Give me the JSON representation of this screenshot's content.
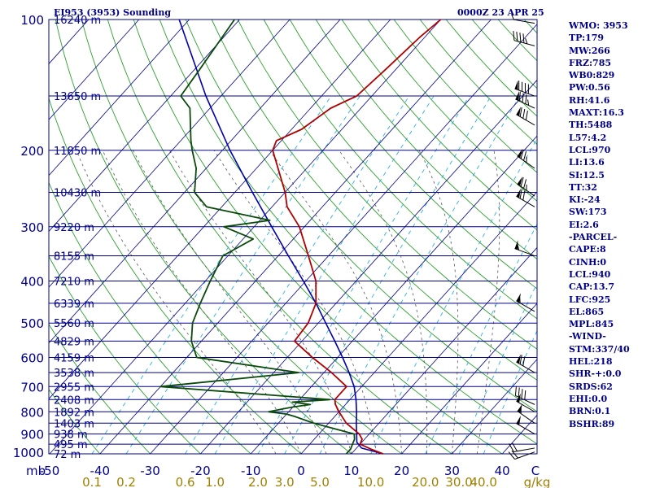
{
  "header": {
    "station_title": "EI953 (3953) Sounding",
    "valid_time": "0000Z 23 APR 25"
  },
  "indices": [
    "WMO: 3953",
    "TP:179",
    "MW:266",
    "FRZ:785",
    "WB0:829",
    "PW:0.56",
    "RH:41.6",
    "MAXT:16.3",
    "TH:5488",
    "L57:4.2",
    "LCL:970",
    "LI:13.6",
    "SI:12.5",
    "TT:32",
    "KI:-24",
    "SW:173",
    "EI:2.6",
    "-PARCEL-",
    "CAPE:8",
    "CINH:0",
    "LCL:940",
    "CAP:13.7",
    "LFC:925",
    "EL:865",
    "MPL:845",
    "-WIND-",
    "STM:337/40",
    "HEL:218",
    "SHR-+:0.0",
    "SRDS:62",
    "EHI:0.0",
    "BRN:0.1",
    "BSHR:89"
  ],
  "colors": {
    "temperature": "#b00000",
    "dewpoint": "#0a4a0a",
    "parcel": "#0000aa",
    "isobar": "#00008b",
    "isotherm": "#00008b",
    "dry_adiabat": "#2ca02c",
    "moist_adiabat": "#555555",
    "mixing_ratio": "#2ab0e0",
    "axis_text": "#00008b",
    "mixing_text": "#a08000",
    "wind_barb": "#000000"
  },
  "chart_data": {
    "type": "skew-t",
    "pressure_unit": "mb",
    "temperature_unit": "C",
    "mixing_ratio_unit": "g/kg",
    "ylim": [
      1000,
      100
    ],
    "pressure_ticks": [
      100,
      200,
      300,
      400,
      500,
      600,
      700,
      800,
      900,
      1000
    ],
    "temperature_ticks": [
      -50,
      -40,
      -30,
      -20,
      -10,
      0,
      10,
      20,
      30,
      40
    ],
    "mixing_ratio_ticks": [
      "0.1",
      "0.2",
      "0.6",
      "1.0",
      "2.0",
      "3.0",
      "5.0",
      "10.0",
      "20.0",
      "30.0",
      "40.0"
    ],
    "height_levels": [
      {
        "p": 100,
        "label": "16240 m"
      },
      {
        "p": 150,
        "label": "13650 m"
      },
      {
        "p": 200,
        "label": "11850 m"
      },
      {
        "p": 250,
        "label": "10430 m"
      },
      {
        "p": 300,
        "label": "9220 m"
      },
      {
        "p": 350,
        "label": "8155 m"
      },
      {
        "p": 400,
        "label": "7210 m"
      },
      {
        "p": 450,
        "label": "6339 m"
      },
      {
        "p": 500,
        "label": "5560 m"
      },
      {
        "p": 550,
        "label": "4829 m"
      },
      {
        "p": 600,
        "label": "4159 m"
      },
      {
        "p": 650,
        "label": "3538 m"
      },
      {
        "p": 700,
        "label": "2955 m"
      },
      {
        "p": 750,
        "label": "2408 m"
      },
      {
        "p": 800,
        "label": "1892 m"
      },
      {
        "p": 850,
        "label": "1403 m"
      },
      {
        "p": 900,
        "label": "938 m"
      },
      {
        "p": 950,
        "label": "495 m"
      },
      {
        "p": 1000,
        "label": "72 m"
      }
    ],
    "temperature_profile": [
      {
        "p": 1000,
        "t": 16.3
      },
      {
        "p": 975,
        "t": 13.0
      },
      {
        "p": 950,
        "t": 10.0
      },
      {
        "p": 925,
        "t": 9.5
      },
      {
        "p": 900,
        "t": 8.0
      },
      {
        "p": 850,
        "t": 3.5
      },
      {
        "p": 800,
        "t": 0.0
      },
      {
        "p": 770,
        "t": -2.0
      },
      {
        "p": 750,
        "t": -3.0
      },
      {
        "p": 700,
        "t": -3.0
      },
      {
        "p": 650,
        "t": -8.5
      },
      {
        "p": 600,
        "t": -15.0
      },
      {
        "p": 550,
        "t": -21.5
      },
      {
        "p": 500,
        "t": -22.0
      },
      {
        "p": 450,
        "t": -24.0
      },
      {
        "p": 400,
        "t": -28.0
      },
      {
        "p": 350,
        "t": -34.0
      },
      {
        "p": 300,
        "t": -41.0
      },
      {
        "p": 270,
        "t": -47.0
      },
      {
        "p": 250,
        "t": -50.0
      },
      {
        "p": 200,
        "t": -60.0
      },
      {
        "p": 190,
        "t": -61.0
      },
      {
        "p": 179,
        "t": -58.0
      },
      {
        "p": 160,
        "t": -56.0
      },
      {
        "p": 150,
        "t": -53.0
      },
      {
        "p": 130,
        "t": -52.0
      },
      {
        "p": 110,
        "t": -51.0
      },
      {
        "p": 100,
        "t": -50.0
      }
    ],
    "dewpoint_profile": [
      {
        "p": 1000,
        "t": 9.0
      },
      {
        "p": 975,
        "t": 9.0
      },
      {
        "p": 950,
        "t": 8.5
      },
      {
        "p": 925,
        "t": 8.0
      },
      {
        "p": 900,
        "t": 7.0
      },
      {
        "p": 850,
        "t": -3.0
      },
      {
        "p": 820,
        "t": -8.0
      },
      {
        "p": 810,
        "t": -10.0
      },
      {
        "p": 800,
        "t": -14.0
      },
      {
        "p": 790,
        "t": -12.0
      },
      {
        "p": 780,
        "t": -10.0
      },
      {
        "p": 770,
        "t": -7.0
      },
      {
        "p": 760,
        "t": -11.0
      },
      {
        "p": 750,
        "t": -4.0
      },
      {
        "p": 700,
        "t": -40.0
      },
      {
        "p": 650,
        "t": -15.0
      },
      {
        "p": 600,
        "t": -38.0
      },
      {
        "p": 550,
        "t": -42.0
      },
      {
        "p": 500,
        "t": -45.0
      },
      {
        "p": 450,
        "t": -47.0
      },
      {
        "p": 400,
        "t": -49.0
      },
      {
        "p": 350,
        "t": -51.0
      },
      {
        "p": 320,
        "t": -48.0
      },
      {
        "p": 300,
        "t": -56.0
      },
      {
        "p": 290,
        "t": -48.0
      },
      {
        "p": 270,
        "t": -63.0
      },
      {
        "p": 250,
        "t": -68.0
      },
      {
        "p": 220,
        "t": -72.0
      },
      {
        "p": 200,
        "t": -76.0
      },
      {
        "p": 190,
        "t": -78.0
      },
      {
        "p": 160,
        "t": -84.0
      },
      {
        "p": 150,
        "t": -88.0
      },
      {
        "p": 130,
        "t": -89.0
      },
      {
        "p": 100,
        "t": -91.0
      }
    ],
    "parcel_profile": [
      {
        "p": 1000,
        "t": 16.3
      },
      {
        "p": 970,
        "t": 11.0
      },
      {
        "p": 940,
        "t": 9.0
      },
      {
        "p": 900,
        "t": 7.5
      },
      {
        "p": 850,
        "t": 5.5
      },
      {
        "p": 800,
        "t": 3.5
      },
      {
        "p": 750,
        "t": 1.2
      },
      {
        "p": 700,
        "t": -1.5
      },
      {
        "p": 650,
        "t": -5.0
      },
      {
        "p": 600,
        "t": -9.0
      },
      {
        "p": 550,
        "t": -13.5
      },
      {
        "p": 500,
        "t": -18.5
      },
      {
        "p": 450,
        "t": -24.0
      },
      {
        "p": 400,
        "t": -30.5
      },
      {
        "p": 350,
        "t": -38.0
      },
      {
        "p": 300,
        "t": -46.5
      },
      {
        "p": 250,
        "t": -56.5
      },
      {
        "p": 200,
        "t": -68.5
      },
      {
        "p": 150,
        "t": -83.0
      },
      {
        "p": 100,
        "t": -102.0
      }
    ],
    "wind_barbs": [
      {
        "p": 990,
        "dir": 250,
        "spd": 20
      },
      {
        "p": 970,
        "dir": 260,
        "spd": 20
      },
      {
        "p": 900,
        "dir": 300,
        "spd": 50
      },
      {
        "p": 850,
        "dir": 305,
        "spd": 55
      },
      {
        "p": 800,
        "dir": 300,
        "spd": 50
      },
      {
        "p": 770,
        "dir": 295,
        "spd": 40
      },
      {
        "p": 650,
        "dir": 300,
        "spd": 70
      },
      {
        "p": 470,
        "dir": 300,
        "spd": 55
      },
      {
        "p": 350,
        "dir": 290,
        "spd": 55
      },
      {
        "p": 270,
        "dir": 300,
        "spd": 70
      },
      {
        "p": 255,
        "dir": 305,
        "spd": 75
      },
      {
        "p": 220,
        "dir": 305,
        "spd": 75
      },
      {
        "p": 175,
        "dir": 300,
        "spd": 80
      },
      {
        "p": 160,
        "dir": 295,
        "spd": 85
      },
      {
        "p": 150,
        "dir": 290,
        "spd": 90
      },
      {
        "p": 115,
        "dir": 285,
        "spd": 45
      },
      {
        "p": 102,
        "dir": 280,
        "spd": 5
      }
    ]
  }
}
